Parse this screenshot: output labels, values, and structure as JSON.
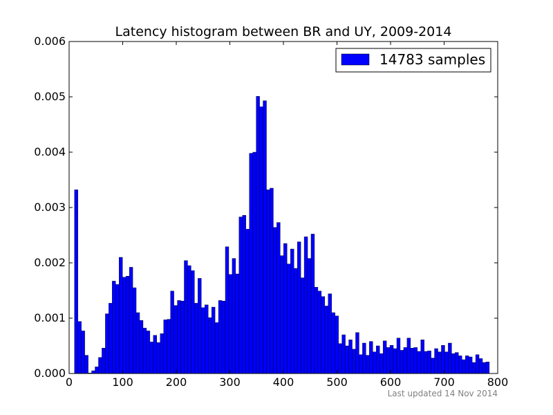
{
  "chart_data": {
    "type": "bar",
    "title": "Latency histogram between BR and UY, 2009-2014",
    "xlabel": "",
    "ylabel": "",
    "xlim": [
      0,
      800
    ],
    "ylim": [
      0,
      0.006
    ],
    "x_ticks": [
      "0",
      "100",
      "200",
      "300",
      "400",
      "500",
      "600",
      "700",
      "800"
    ],
    "y_ticks": [
      "0.000",
      "0.001",
      "0.002",
      "0.003",
      "0.004",
      "0.005",
      "0.006"
    ],
    "grid": false,
    "legend_position": "top-right",
    "bin_start": 10,
    "bin_width": 6.4,
    "series": [
      {
        "name": "14783 samples",
        "color": "#0000ff",
        "values": [
          0.00332,
          0.00094,
          0.00077,
          0.00033,
          1e-05,
          5e-05,
          0.00012,
          0.00029,
          0.00046,
          0.00108,
          0.00127,
          0.00167,
          0.00161,
          0.0021,
          0.00174,
          0.00176,
          0.00192,
          0.00155,
          0.0011,
          0.00096,
          0.00082,
          0.00077,
          0.00057,
          0.00069,
          0.00056,
          0.00072,
          0.00097,
          0.00098,
          0.00149,
          0.00123,
          0.00132,
          0.00131,
          0.00204,
          0.00195,
          0.00186,
          0.00127,
          0.00172,
          0.00119,
          0.00124,
          0.00101,
          0.0012,
          0.00092,
          0.00132,
          0.00131,
          0.00229,
          0.00179,
          0.00208,
          0.0018,
          0.00283,
          0.00286,
          0.00261,
          0.00398,
          0.004,
          0.00501,
          0.00482,
          0.00493,
          0.00332,
          0.00335,
          0.00264,
          0.00273,
          0.00213,
          0.00235,
          0.00198,
          0.00225,
          0.0019,
          0.00238,
          0.00173,
          0.00247,
          0.00208,
          0.00252,
          0.00156,
          0.00149,
          0.00139,
          0.00122,
          0.00144,
          0.0011,
          0.00104,
          0.00054,
          0.0007,
          0.0005,
          0.00061,
          0.00044,
          0.00074,
          0.00034,
          0.00055,
          0.00033,
          0.00058,
          0.00039,
          0.0005,
          0.00036,
          0.00059,
          0.00047,
          0.00051,
          0.00045,
          0.00064,
          0.00042,
          0.00047,
          0.00064,
          0.00046,
          0.00047,
          0.0004,
          0.00061,
          0.0004,
          0.00041,
          0.00028,
          0.00045,
          0.00039,
          0.00051,
          0.00039,
          0.00055,
          0.00036,
          0.00038,
          0.00032,
          0.00025,
          0.00032,
          0.0003,
          0.0002,
          0.00034,
          0.00027,
          0.0002,
          0.00021
        ]
      }
    ]
  },
  "footnote": "Last updated 14 Nov 2014"
}
